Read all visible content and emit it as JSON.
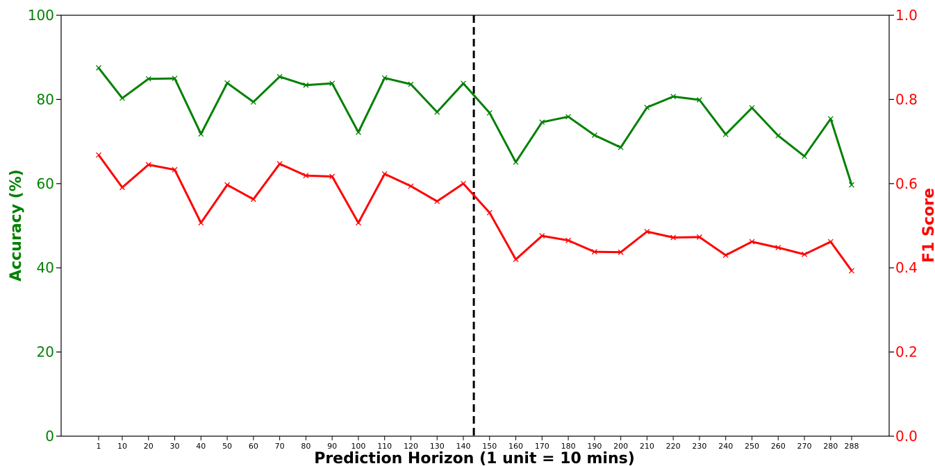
{
  "chart_data": {
    "type": "line",
    "title": "",
    "xlabel": "Prediction Horizon (1 unit = 10 mins)",
    "ylabel_left": "Accuracy (%)",
    "ylabel_right": "F1 Score",
    "categories": [
      "1",
      "10",
      "20",
      "30",
      "40",
      "50",
      "60",
      "70",
      "80",
      "90",
      "100",
      "110",
      "120",
      "130",
      "140",
      "150",
      "160",
      "170",
      "180",
      "190",
      "200",
      "210",
      "220",
      "230",
      "240",
      "250",
      "260",
      "270",
      "280",
      "288"
    ],
    "ylim_left": [
      0,
      100
    ],
    "ylim_right": [
      0.0,
      1.0
    ],
    "yticks_left": [
      "0",
      "20",
      "40",
      "60",
      "80",
      "100"
    ],
    "yticks_right": [
      "0.0",
      "0.2",
      "0.4",
      "0.6",
      "0.8",
      "1.0"
    ],
    "vertical_reference_line": 144,
    "series": [
      {
        "axis": "left",
        "color": "#008000",
        "marker": "x",
        "values": [
          87.5,
          80.3,
          84.9,
          85.0,
          71.8,
          83.9,
          79.4,
          85.4,
          83.4,
          83.8,
          72.2,
          85.1,
          83.6,
          77.0,
          83.8,
          76.8,
          65.1,
          74.6,
          75.9,
          71.5,
          68.6,
          78.1,
          80.7,
          79.9,
          71.7,
          78.0,
          71.4,
          66.5,
          75.4,
          59.7
        ]
      },
      {
        "axis": "right",
        "color": "#ff0000",
        "marker": "x",
        "values": [
          0.668,
          0.591,
          0.645,
          0.633,
          0.507,
          0.597,
          0.563,
          0.647,
          0.619,
          0.617,
          0.507,
          0.623,
          0.594,
          0.558,
          0.6,
          0.531,
          0.42,
          0.476,
          0.465,
          0.438,
          0.437,
          0.486,
          0.472,
          0.473,
          0.43,
          0.462,
          0.448,
          0.432,
          0.462,
          0.393
        ]
      }
    ],
    "colors": {
      "left_axis": "#008000",
      "right_axis": "#ff0000",
      "reference_line": "#000000"
    }
  }
}
